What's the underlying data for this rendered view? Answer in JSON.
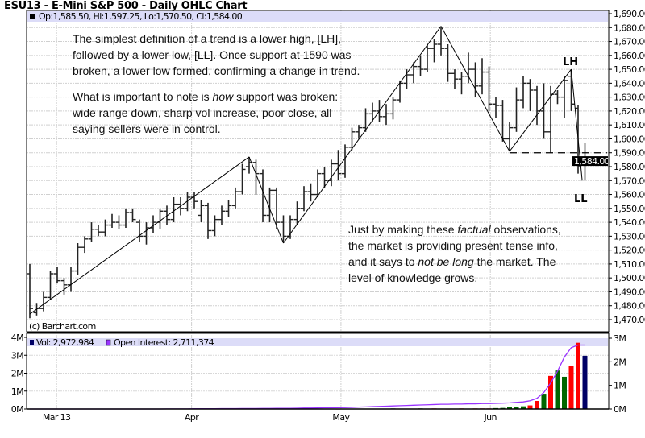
{
  "title": "ESU13 - E-Mini S&P 500 - Daily OHLC Chart",
  "price_legend": "Op:1,585.50, Hi:1,597.25, Lo:1,570.50, Cl:1,584.00",
  "copyright": "(c) Barchart.com",
  "current_price_label": "1,584.00",
  "annotations": {
    "block1": [
      "The simplest definition of a trend is a lower high, [LH],",
      "followed by a lower low, [LL].  Once support at 1590 was",
      "broken, a lower low formed, confirming a change in trend."
    ],
    "block2_line1_pre": "What is important to note is ",
    "block2_line1_em": "how",
    "block2_line1_post": " support was broken:",
    "block2_rest": [
      "wide range down, sharp vol increase, poor close, all",
      "saying sellers were in control."
    ],
    "block3_line1_pre": "Just by making these ",
    "block3_line1_em": "factual",
    "block3_line1_post": " observations,",
    "block3_line2": "the market is providing present tense info,",
    "block3_line3_pre": "and it says to ",
    "block3_line3_em": "not be long",
    "block3_line3_post": " the market.  The",
    "block3_line4": "level of knowledge grows.",
    "lh": "LH",
    "ll": "LL"
  },
  "colors": {
    "up_volume": "#006600",
    "down_volume": "#ff0000",
    "last_volume": "#000066",
    "open_interest": "#9933ff",
    "legend_band": "#dcdcf8"
  },
  "chart_data": [
    {
      "type": "ohlc",
      "ylim": [
        1470,
        1690
      ],
      "y_ticks": [
        "1,470.00",
        "1,480.00",
        "1,490.00",
        "1,500.00",
        "1,510.00",
        "1,520.00",
        "1,530.00",
        "1,540.00",
        "1,550.00",
        "1,560.00",
        "1,570.00",
        "1,580.00",
        "1,590.00",
        "1,600.00",
        "1,610.00",
        "1,620.00",
        "1,630.00",
        "1,640.00",
        "1,650.00",
        "1,660.00",
        "1,670.00",
        "1,680.00",
        "1,690.00"
      ],
      "x_ticks": [
        {
          "label": "Mar 13",
          "bar": 3.9
        },
        {
          "label": "Apr",
          "bar": 23.6
        },
        {
          "label": "May",
          "bar": 45.4
        },
        {
          "label": "Jun",
          "bar": 67.2
        }
      ],
      "grid": true,
      "bars_ohlc": [
        [
          1503,
          1510,
          1471,
          1478
        ],
        [
          1475,
          1482,
          1473,
          1478
        ],
        [
          1478,
          1490,
          1476,
          1486
        ],
        [
          1486,
          1505,
          1484,
          1503
        ],
        [
          1503,
          1508,
          1496,
          1498
        ],
        [
          1498,
          1500,
          1488,
          1495
        ],
        [
          1495,
          1508,
          1490,
          1505
        ],
        [
          1505,
          1525,
          1502,
          1522
        ],
        [
          1522,
          1530,
          1518,
          1528
        ],
        [
          1528,
          1540,
          1526,
          1535
        ],
        [
          1535,
          1538,
          1530,
          1533
        ],
        [
          1533,
          1542,
          1530,
          1538
        ],
        [
          1538,
          1546,
          1536,
          1540
        ],
        [
          1540,
          1545,
          1535,
          1538
        ],
        [
          1538,
          1550,
          1536,
          1547
        ],
        [
          1547,
          1550,
          1540,
          1542
        ],
        [
          1540,
          1542,
          1526,
          1530
        ],
        [
          1530,
          1540,
          1524,
          1536
        ],
        [
          1536,
          1545,
          1532,
          1540
        ],
        [
          1540,
          1550,
          1535,
          1548
        ],
        [
          1548,
          1552,
          1538,
          1542
        ],
        [
          1542,
          1558,
          1540,
          1553
        ],
        [
          1553,
          1558,
          1545,
          1550
        ],
        [
          1550,
          1562,
          1548,
          1558
        ],
        [
          1558,
          1562,
          1550,
          1555
        ],
        [
          1545,
          1556,
          1540,
          1552
        ],
        [
          1552,
          1554,
          1528,
          1534
        ],
        [
          1534,
          1545,
          1530,
          1542
        ],
        [
          1542,
          1552,
          1538,
          1548
        ],
        [
          1548,
          1556,
          1544,
          1552
        ],
        [
          1552,
          1565,
          1550,
          1562
        ],
        [
          1562,
          1582,
          1560,
          1578
        ],
        [
          1580,
          1587,
          1575,
          1583
        ],
        [
          1583,
          1585,
          1560,
          1575
        ],
        [
          1575,
          1578,
          1540,
          1545
        ],
        [
          1545,
          1565,
          1540,
          1563
        ],
        [
          1563,
          1565,
          1535,
          1540
        ],
        [
          1540,
          1545,
          1526,
          1530
        ],
        [
          1530,
          1545,
          1528,
          1542
        ],
        [
          1542,
          1555,
          1538,
          1550
        ],
        [
          1550,
          1566,
          1548,
          1562
        ],
        [
          1562,
          1568,
          1555,
          1560
        ],
        [
          1560,
          1578,
          1558,
          1575
        ],
        [
          1575,
          1580,
          1565,
          1570
        ],
        [
          1570,
          1585,
          1566,
          1582
        ],
        [
          1582,
          1592,
          1570,
          1575
        ],
        [
          1575,
          1596,
          1572,
          1594
        ],
        [
          1594,
          1608,
          1592,
          1605
        ],
        [
          1605,
          1610,
          1600,
          1608
        ],
        [
          1608,
          1622,
          1605,
          1618
        ],
        [
          1618,
          1626,
          1612,
          1620
        ],
        [
          1620,
          1628,
          1612,
          1616
        ],
        [
          1616,
          1625,
          1610,
          1618
        ],
        [
          1618,
          1630,
          1614,
          1628
        ],
        [
          1628,
          1642,
          1626,
          1640
        ],
        [
          1640,
          1650,
          1636,
          1646
        ],
        [
          1646,
          1655,
          1640,
          1652
        ],
        [
          1652,
          1660,
          1645,
          1650
        ],
        [
          1650,
          1668,
          1648,
          1665
        ],
        [
          1665,
          1672,
          1655,
          1668
        ],
        [
          1668,
          1680,
          1660,
          1665
        ],
        [
          1665,
          1668,
          1641,
          1647
        ],
        [
          1647,
          1650,
          1636,
          1643
        ],
        [
          1643,
          1648,
          1632,
          1645
        ],
        [
          1645,
          1662,
          1640,
          1650
        ],
        [
          1650,
          1655,
          1630,
          1638
        ],
        [
          1638,
          1658,
          1632,
          1648
        ],
        [
          1648,
          1652,
          1620,
          1625
        ],
        [
          1625,
          1630,
          1615,
          1624
        ],
        [
          1624,
          1628,
          1598,
          1600
        ],
        [
          1600,
          1612,
          1591,
          1608
        ],
        [
          1608,
          1637,
          1605,
          1628
        ],
        [
          1628,
          1645,
          1622,
          1640
        ],
        [
          1640,
          1643,
          1620,
          1635
        ],
        [
          1635,
          1638,
          1610,
          1620
        ],
        [
          1620,
          1640,
          1600,
          1605
        ],
        [
          1605,
          1638,
          1590,
          1632
        ],
        [
          1632,
          1635,
          1625,
          1630
        ],
        [
          1630,
          1645,
          1615,
          1642
        ],
        [
          1645,
          1650,
          1620,
          1625
        ],
        [
          1622,
          1624,
          1575,
          1580
        ],
        [
          1585.5,
          1597.25,
          1570.5,
          1584
        ]
      ],
      "trendlines": [
        [
          [
            0,
            1474
          ],
          [
            32,
            1587
          ]
        ],
        [
          [
            32,
            1587
          ],
          [
            37,
            1525
          ]
        ],
        [
          [
            37,
            1525
          ],
          [
            60,
            1681
          ]
        ],
        [
          [
            60,
            1681
          ],
          [
            70,
            1591
          ]
        ],
        [
          [
            70,
            1591
          ],
          [
            79,
            1650
          ]
        ],
        [
          [
            79,
            1650
          ],
          [
            80.6,
            1570
          ]
        ]
      ],
      "support_level": {
        "price": 1590,
        "from_bar": 70
      }
    },
    {
      "type": "bar+line",
      "legend": [
        "Vol: 2,972,984",
        "Open Interest: 2,711,374"
      ],
      "left_ticks": [
        "0M",
        "1M",
        "2M",
        "3M",
        "4M"
      ],
      "right_ticks": [
        "0M",
        "1M",
        "2M",
        "3M"
      ],
      "volume_ylim_millions": [
        0,
        4
      ],
      "open_interest_ylim_millions": [
        0,
        3
      ],
      "volume_millions": {
        "45": 0.02,
        "53": 0.03,
        "57": 0.03,
        "59": 0.03,
        "61": 0.02,
        "63": 0.03,
        "65": 0.03,
        "66": 0.03,
        "67": 0.03,
        "68": 0.05,
        "69": 0.06,
        "70": 0.1,
        "71": 0.1,
        "72": 0.15,
        "73": 0.2,
        "74": 0.45,
        "75": 0.85,
        "76": 1.85,
        "77": 2.15,
        "78": 1.8,
        "79": 2.4,
        "80": 3.7,
        "81": 2.97
      },
      "volume_colors": {
        "45": "down",
        "53": "up",
        "57": "up",
        "59": "down",
        "61": "down",
        "63": "down",
        "65": "down",
        "66": "down",
        "67": "down",
        "68": "up",
        "69": "up",
        "70": "up",
        "71": "up",
        "72": "up",
        "73": "down",
        "74": "down",
        "75": "up",
        "76": "down",
        "77": "up",
        "78": "up",
        "79": "down",
        "80": "down",
        "81": "last"
      },
      "open_interest_millions": [
        0.0,
        0.0,
        0.0,
        0.0,
        0.0,
        0.0,
        0.0,
        0.0,
        0.0,
        0.0,
        0.0,
        0.0,
        0.0,
        0.0,
        0.0,
        0.0,
        0.0,
        0.0,
        0.0,
        0.0,
        0.005,
        0.005,
        0.005,
        0.005,
        0.01,
        0.01,
        0.01,
        0.01,
        0.015,
        0.015,
        0.015,
        0.02,
        0.02,
        0.02,
        0.025,
        0.025,
        0.03,
        0.03,
        0.03,
        0.035,
        0.04,
        0.04,
        0.045,
        0.05,
        0.05,
        0.055,
        0.06,
        0.07,
        0.08,
        0.09,
        0.1,
        0.11,
        0.12,
        0.13,
        0.14,
        0.15,
        0.16,
        0.17,
        0.18,
        0.19,
        0.2,
        0.2,
        0.21,
        0.21,
        0.22,
        0.22,
        0.23,
        0.23,
        0.24,
        0.25,
        0.26,
        0.28,
        0.3,
        0.35,
        0.45,
        0.7,
        1.1,
        1.6,
        2.2,
        2.6,
        2.71,
        2.71
      ]
    }
  ]
}
